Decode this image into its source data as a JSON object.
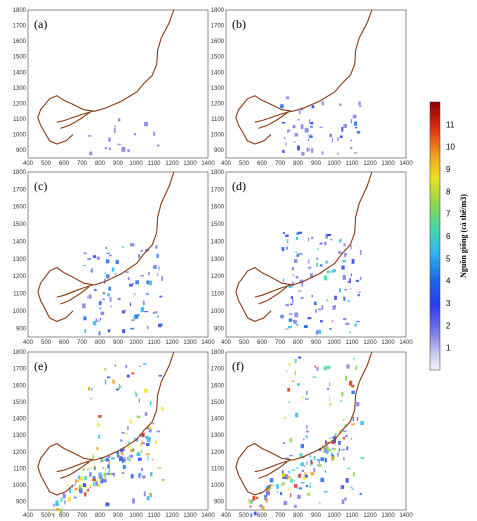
{
  "chart_data": {
    "type": "heatmap",
    "panels": [
      {
        "label": "(a)",
        "intensity": 0.05
      },
      {
        "label": "(b)",
        "intensity": 0.25
      },
      {
        "label": "(c)",
        "intensity": 0.45
      },
      {
        "label": "(d)",
        "intensity": 0.55
      },
      {
        "label": "(e)",
        "intensity": 0.95
      },
      {
        "label": "(f)",
        "intensity": 1.0
      }
    ],
    "x_ticks": [
      400,
      500,
      600,
      700,
      800,
      900,
      1000,
      1100,
      1200,
      1300,
      1400
    ],
    "y_ticks": [
      900,
      1000,
      1100,
      1200,
      1300,
      1400,
      1500,
      1600,
      1700,
      1800
    ],
    "xlim": [
      400,
      1400
    ],
    "ylim": [
      850,
      1800
    ],
    "colorbar": {
      "label": "Nguồn giống (cá thể/m3)",
      "ticks": [
        11,
        10,
        9,
        8,
        7,
        6,
        5,
        4,
        3,
        2,
        1
      ],
      "range": [
        0,
        12
      ],
      "colors": [
        "#f4f4fc",
        "#c9c9f0",
        "#7b7be8",
        "#2a3cf0",
        "#1d6ae8",
        "#2fb7f0",
        "#3fd6b0",
        "#8cd84a",
        "#f0e020",
        "#f0a020",
        "#e03010",
        "#8b0000"
      ]
    },
    "coast_color": "#8b3a10"
  }
}
